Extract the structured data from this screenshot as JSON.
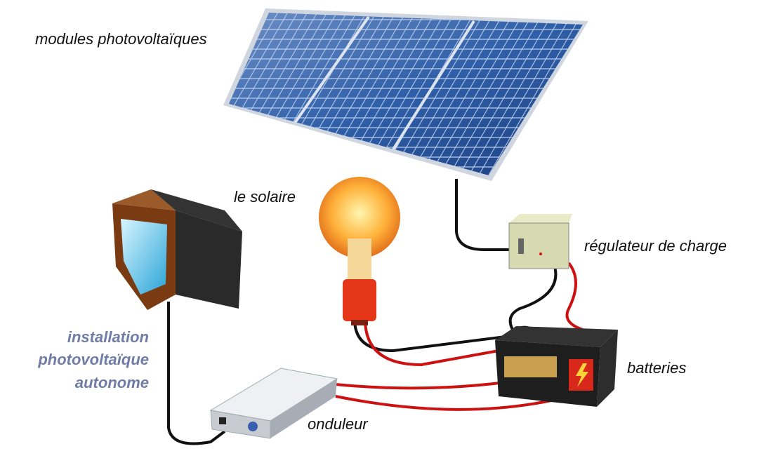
{
  "labels": {
    "modules": "modules photovoltaïques",
    "bulb": "le solaire",
    "regulator": "régulateur de charge",
    "batteries": "batteries",
    "inverter": "onduleur"
  },
  "caption": {
    "lines": [
      "installation",
      "photovoltaïque",
      "autonome"
    ]
  }
}
